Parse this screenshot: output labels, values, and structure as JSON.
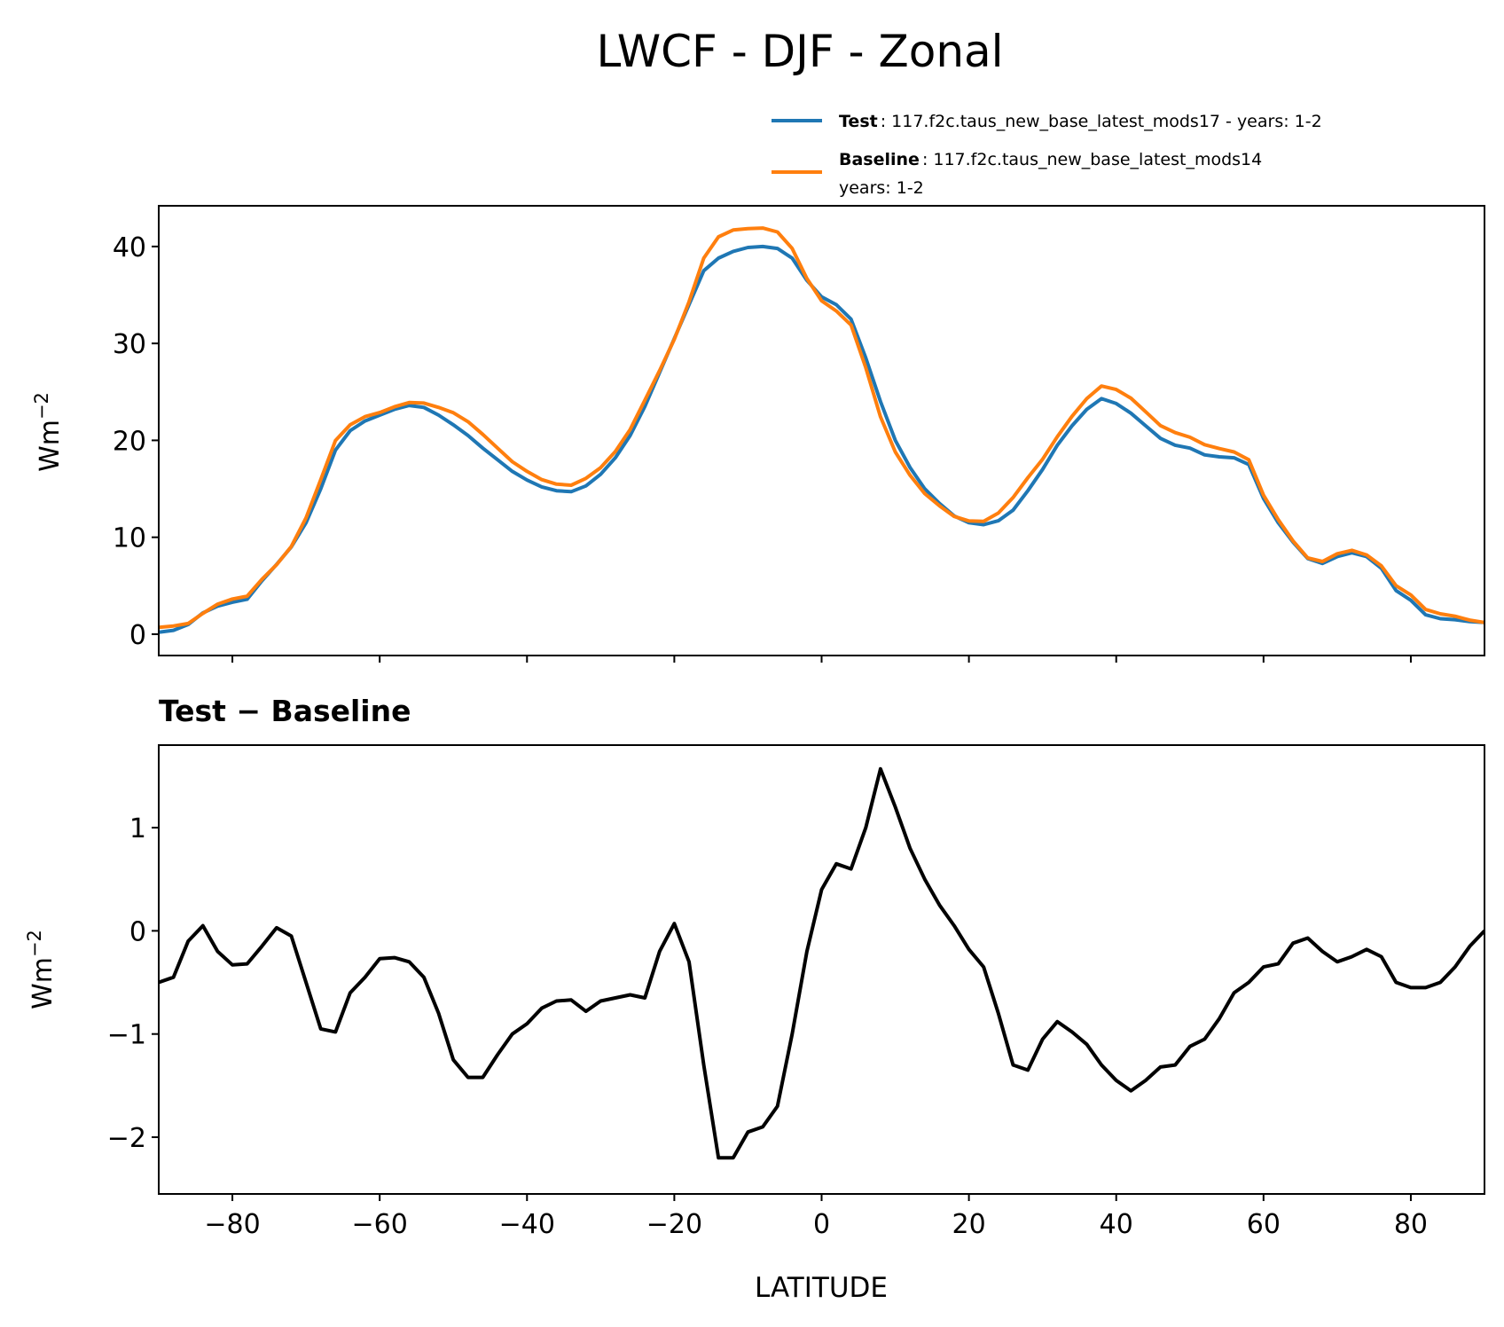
{
  "chart_data": [
    {
      "type": "line",
      "title": "LWCF - DJF - Zonal",
      "ylabel": "Wm",
      "ylabel_exponent": "−2",
      "xlim": [
        -90,
        90
      ],
      "ylim": [
        -2.2,
        44.2
      ],
      "yticks": [
        0,
        10,
        20,
        30,
        40
      ],
      "ytick_labels": [
        "0",
        "10",
        "20",
        "30",
        "40"
      ],
      "legend_position": "top-right, above axes",
      "legend": [
        {
          "name_bold": "Test",
          "text": ": 117.f2c.taus_new_base_latest_mods17 - years: 1-2",
          "text2": ""
        },
        {
          "name_bold": "Baseline",
          "text": ": 117.f2c.taus_new_base_latest_mods14",
          "text2": "years: 1-2"
        }
      ],
      "x": [
        -90,
        -88,
        -86,
        -84,
        -82,
        -80,
        -78,
        -76,
        -74,
        -72,
        -70,
        -68,
        -66,
        -64,
        -62,
        -60,
        -58,
        -56,
        -54,
        -52,
        -50,
        -48,
        -46,
        -44,
        -42,
        -40,
        -38,
        -36,
        -34,
        -32,
        -30,
        -28,
        -26,
        -24,
        -22,
        -20,
        -18,
        -16,
        -14,
        -12,
        -10,
        -8,
        -6,
        -4,
        -2,
        0,
        2,
        4,
        6,
        8,
        10,
        12,
        14,
        16,
        18,
        20,
        22,
        24,
        26,
        28,
        30,
        32,
        34,
        36,
        38,
        40,
        42,
        44,
        46,
        48,
        50,
        52,
        54,
        56,
        58,
        60,
        62,
        64,
        66,
        68,
        70,
        72,
        74,
        76,
        78,
        80,
        82,
        84,
        86,
        88,
        90
      ],
      "series": [
        {
          "name": "Test",
          "color": "#1f77b4",
          "values": [
            0.2,
            0.4,
            1.0,
            2.2,
            2.9,
            3.3,
            3.6,
            5.5,
            7.2,
            9.0,
            11.5,
            15,
            19,
            21,
            22,
            22.6,
            23.2,
            23.6,
            23.4,
            22.6,
            21.6,
            20.5,
            19.2,
            18.0,
            16.8,
            15.9,
            15.2,
            14.8,
            14.7,
            15.3,
            16.5,
            18.2,
            20.5,
            23.5,
            27,
            30.5,
            34,
            37.5,
            38.8,
            39.5,
            39.9,
            40.0,
            39.8,
            38.8,
            36.5,
            34.8,
            34.0,
            32.5,
            28.5,
            24,
            20,
            17.2,
            15,
            13.5,
            12.2,
            11.5,
            11.3,
            11.7,
            12.8,
            14.8,
            17,
            19.5,
            21.5,
            23.2,
            24.3,
            23.8,
            22.8,
            21.5,
            20.2,
            19.5,
            19.2,
            18.5,
            18.3,
            18.2,
            17.5,
            14,
            11.5,
            9.5,
            7.8,
            7.3,
            8.0,
            8.4,
            8.0,
            6.8,
            4.5,
            3.5,
            2.0,
            1.6,
            1.5,
            1.3,
            1.2
          ]
        },
        {
          "name": "Baseline",
          "color": "#ff7f0e",
          "values": [
            0.7,
            0.85,
            1.1,
            2.15,
            3.1,
            3.63,
            3.92,
            5.65,
            7.17,
            9.05,
            12.0,
            15.95,
            19.98,
            21.6,
            22.45,
            22.87,
            23.46,
            23.9,
            23.85,
            23.4,
            22.85,
            21.92,
            20.62,
            19.2,
            17.8,
            16.8,
            15.95,
            15.48,
            15.37,
            16.08,
            17.18,
            18.85,
            21.12,
            24.15,
            27.2,
            30.43,
            34.3,
            38.8,
            41.0,
            41.7,
            41.85,
            41.9,
            41.5,
            39.8,
            36.7,
            34.4,
            33.35,
            31.9,
            27.5,
            22.43,
            18.8,
            16.4,
            14.5,
            13.25,
            12.15,
            11.68,
            11.65,
            12.5,
            14.1,
            16.15,
            18.05,
            20.38,
            22.48,
            24.3,
            25.6,
            25.25,
            24.35,
            22.95,
            21.52,
            20.8,
            20.32,
            19.55,
            19.15,
            18.8,
            18.0,
            14.35,
            11.82,
            9.62,
            7.87,
            7.5,
            8.3,
            8.65,
            8.18,
            7.05,
            5.0,
            4.05,
            2.55,
            2.1,
            1.85,
            1.45,
            1.2
          ]
        }
      ]
    },
    {
      "type": "line",
      "title": "Test − Baseline",
      "ylabel": "Wm",
      "ylabel_exponent": "−2",
      "xlabel": "LATITUDE",
      "xlim": [
        -90,
        90
      ],
      "ylim": [
        -2.55,
        1.8
      ],
      "yticks": [
        -2,
        -1,
        0,
        1
      ],
      "ytick_labels": [
        "−2",
        "−1",
        "0",
        "1"
      ],
      "xticks": [
        -80,
        -60,
        -40,
        -20,
        0,
        20,
        40,
        60,
        80
      ],
      "xtick_labels": [
        "−80",
        "−60",
        "−40",
        "−20",
        "0",
        "20",
        "40",
        "60",
        "80"
      ],
      "series": [
        {
          "name": "Test − Baseline",
          "color": "#000000",
          "values": [
            -0.5,
            -0.45,
            -0.1,
            0.05,
            -0.2,
            -0.33,
            -0.32,
            -0.15,
            0.03,
            -0.05,
            -0.5,
            -0.95,
            -0.98,
            -0.6,
            -0.45,
            -0.27,
            -0.26,
            -0.3,
            -0.45,
            -0.8,
            -1.25,
            -1.42,
            -1.42,
            -1.2,
            -1.0,
            -0.9,
            -0.75,
            -0.68,
            -0.67,
            -0.78,
            -0.68,
            -0.65,
            -0.62,
            -0.65,
            -0.2,
            0.07,
            -0.3,
            -1.3,
            -2.2,
            -2.2,
            -1.95,
            -1.9,
            -1.7,
            -1.0,
            -0.2,
            0.4,
            0.65,
            0.6,
            1.0,
            1.57,
            1.2,
            0.8,
            0.5,
            0.25,
            0.05,
            -0.18,
            -0.35,
            -0.8,
            -1.3,
            -1.35,
            -1.05,
            -0.88,
            -0.98,
            -1.1,
            -1.3,
            -1.45,
            -1.55,
            -1.45,
            -1.32,
            -1.3,
            -1.12,
            -1.05,
            -0.85,
            -0.6,
            -0.5,
            -0.35,
            -0.32,
            -0.12,
            -0.07,
            -0.2,
            -0.3,
            -0.25,
            -0.18,
            -0.25,
            -0.5,
            -0.55,
            -0.55,
            -0.5,
            -0.35,
            -0.15,
            0.0
          ]
        }
      ]
    }
  ]
}
